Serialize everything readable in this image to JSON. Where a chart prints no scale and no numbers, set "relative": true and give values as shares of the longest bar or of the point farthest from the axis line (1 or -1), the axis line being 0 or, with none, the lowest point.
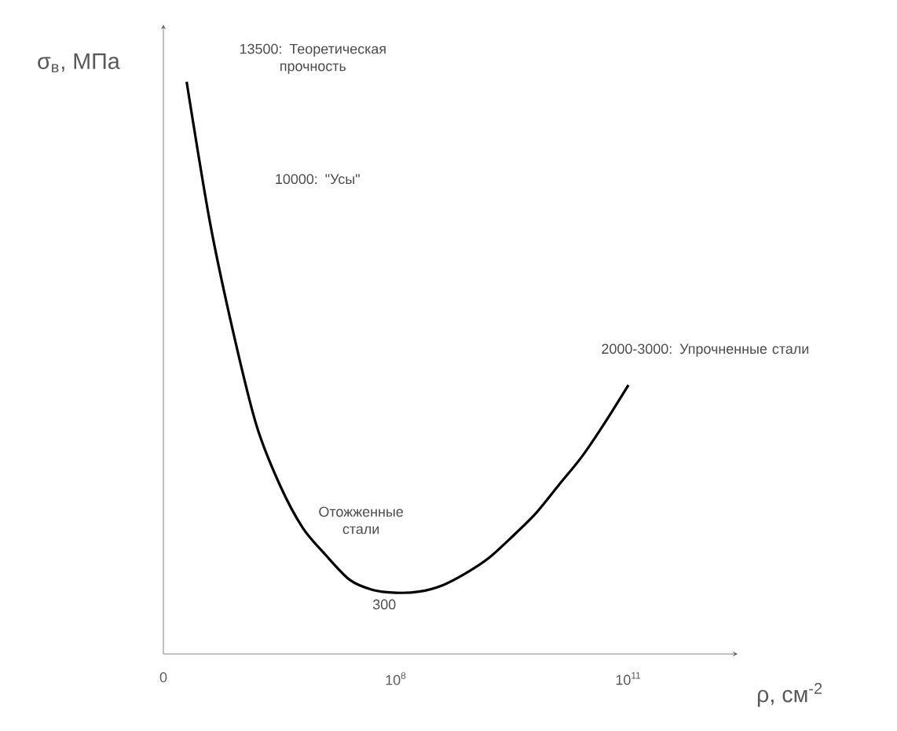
{
  "chart_data": {
    "type": "line",
    "relative": true,
    "xlabel": "ρ, см$^{-2}$",
    "ylabel": "σ$_{в}$, МПа",
    "categories": [
      "0",
      null,
      null,
      null,
      null,
      null,
      null,
      null,
      null,
      null,
      "10$^{8}$",
      null,
      null,
      null,
      null,
      null,
      null,
      null,
      null,
      null,
      "10$^{11}$",
      null,
      null,
      null,
      null
    ],
    "series": [
      {
        "color": "#000000",
        "values": [
          null,
          1.0,
          0.755,
          0.563,
          0.4,
          0.296,
          0.22,
          0.172,
          0.13,
          0.112,
          0.107,
          0.109,
          0.12,
          0.141,
          0.168,
          0.205,
          0.245,
          0.295,
          0.345,
          0.405,
          0.47,
          null,
          null,
          null,
          null
        ]
      }
    ],
    "annotations": [
      "13500: Теоретическая прочность",
      "10000: \"Усы\"",
      "2000-3000: Упрочненные стали",
      "Отожженные стали",
      "300"
    ]
  }
}
